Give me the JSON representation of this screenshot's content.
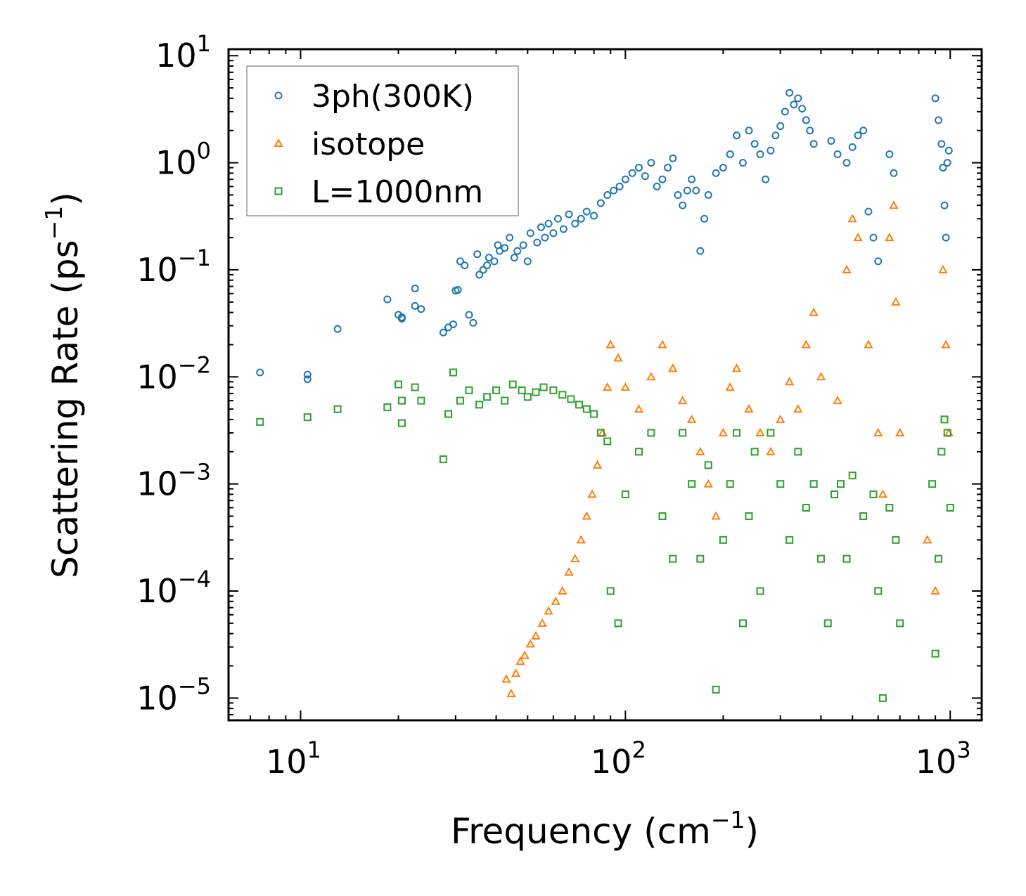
{
  "chart_data": {
    "type": "scatter",
    "x_scale": "log",
    "y_scale": "log",
    "xlabel": {
      "base": "Frequency (cm",
      "sup": "−1",
      "close": ")"
    },
    "ylabel": {
      "base": "Scattering Rate (ps",
      "sup": "−1",
      "close": ")"
    },
    "xlim": [
      6.0,
      1250
    ],
    "ylim": [
      6.2e-06,
      11.5
    ],
    "x_ticks": [
      {
        "value": 10,
        "base": "10",
        "exp": "1"
      },
      {
        "value": 100,
        "base": "10",
        "exp": "2"
      },
      {
        "value": 1000,
        "base": "10",
        "exp": "3"
      }
    ],
    "y_ticks": [
      {
        "value": 10,
        "base": "10",
        "exp": "1"
      },
      {
        "value": 1,
        "base": "10",
        "exp": "0"
      },
      {
        "value": 0.1,
        "base": "10",
        "exp": "−1"
      },
      {
        "value": 0.01,
        "base": "10",
        "exp": "−2"
      },
      {
        "value": 0.001,
        "base": "10",
        "exp": "−3"
      },
      {
        "value": 0.0001,
        "base": "10",
        "exp": "−4"
      },
      {
        "value": 1e-05,
        "base": "10",
        "exp": "−5"
      }
    ],
    "legend_position": "top-left",
    "series": [
      {
        "name": "3ph(300K)",
        "marker": "circle",
        "color": "#1f77b4",
        "points": [
          [
            7.5,
            0.011
          ],
          [
            10.5,
            0.0095
          ],
          [
            10.5,
            0.0105
          ],
          [
            13,
            0.028
          ],
          [
            18.5,
            0.053
          ],
          [
            20,
            0.038
          ],
          [
            20.5,
            0.036
          ],
          [
            20.5,
            0.035
          ],
          [
            22.5,
            0.067
          ],
          [
            22.5,
            0.046
          ],
          [
            23.5,
            0.043
          ],
          [
            27.5,
            0.026
          ],
          [
            28.5,
            0.029
          ],
          [
            29.5,
            0.031
          ],
          [
            30,
            0.064
          ],
          [
            30.5,
            0.065
          ],
          [
            31,
            0.12
          ],
          [
            32,
            0.11
          ],
          [
            33,
            0.038
          ],
          [
            34,
            0.032
          ],
          [
            35,
            0.14
          ],
          [
            35.5,
            0.09
          ],
          [
            36.5,
            0.1
          ],
          [
            37.5,
            0.11
          ],
          [
            38,
            0.13
          ],
          [
            39.5,
            0.12
          ],
          [
            40.5,
            0.17
          ],
          [
            41,
            0.15
          ],
          [
            42.5,
            0.16
          ],
          [
            44,
            0.2
          ],
          [
            45.5,
            0.13
          ],
          [
            46.5,
            0.15
          ],
          [
            48.5,
            0.17
          ],
          [
            50,
            0.12
          ],
          [
            51,
            0.22
          ],
          [
            53.5,
            0.18
          ],
          [
            55,
            0.25
          ],
          [
            56.5,
            0.2
          ],
          [
            58,
            0.27
          ],
          [
            60,
            0.22
          ],
          [
            62,
            0.3
          ],
          [
            64.5,
            0.24
          ],
          [
            67,
            0.33
          ],
          [
            70,
            0.27
          ],
          [
            73,
            0.3
          ],
          [
            76,
            0.35
          ],
          [
            80,
            0.32
          ],
          [
            84,
            0.42
          ],
          [
            88,
            0.5
          ],
          [
            92,
            0.55
          ],
          [
            96,
            0.6
          ],
          [
            100,
            0.7
          ],
          [
            105,
            0.8
          ],
          [
            110,
            0.9
          ],
          [
            115,
            0.75
          ],
          [
            120,
            1.0
          ],
          [
            125,
            0.6
          ],
          [
            130,
            0.7
          ],
          [
            135,
            0.9
          ],
          [
            140,
            1.1
          ],
          [
            145,
            0.5
          ],
          [
            150,
            0.4
          ],
          [
            155,
            0.55
          ],
          [
            160,
            0.7
          ],
          [
            165,
            0.55
          ],
          [
            170,
            0.15
          ],
          [
            175,
            0.3
          ],
          [
            180,
            0.5
          ],
          [
            190,
            0.8
          ],
          [
            200,
            0.9
          ],
          [
            210,
            1.2
          ],
          [
            220,
            1.8
          ],
          [
            230,
            1.0
          ],
          [
            240,
            2.0
          ],
          [
            250,
            1.5
          ],
          [
            260,
            1.2
          ],
          [
            270,
            0.7
          ],
          [
            280,
            1.3
          ],
          [
            290,
            1.8
          ],
          [
            300,
            2.2
          ],
          [
            310,
            3.0
          ],
          [
            320,
            4.5
          ],
          [
            330,
            3.5
          ],
          [
            340,
            4.0
          ],
          [
            350,
            3.2
          ],
          [
            360,
            2.5
          ],
          [
            370,
            2.0
          ],
          [
            380,
            1.5
          ],
          [
            430,
            1.6
          ],
          [
            450,
            1.2
          ],
          [
            480,
            1.0
          ],
          [
            500,
            1.4
          ],
          [
            520,
            1.8
          ],
          [
            540,
            2.0
          ],
          [
            560,
            0.35
          ],
          [
            580,
            0.2
          ],
          [
            600,
            0.12
          ],
          [
            650,
            1.2
          ],
          [
            670,
            0.8
          ],
          [
            900,
            4.0
          ],
          [
            920,
            2.5
          ],
          [
            940,
            1.5
          ],
          [
            950,
            0.9
          ],
          [
            960,
            0.4
          ],
          [
            970,
            0.2
          ],
          [
            980,
            1.0
          ],
          [
            990,
            1.3
          ]
        ]
      },
      {
        "name": "isotope",
        "marker": "triangle",
        "color": "#ff7f0e",
        "points": [
          [
            43,
            1.5e-05
          ],
          [
            44.5,
            1.1e-05
          ],
          [
            46,
            1.7e-05
          ],
          [
            47.5,
            2.2e-05
          ],
          [
            49,
            2.5e-05
          ],
          [
            51,
            3.2e-05
          ],
          [
            53,
            3.8e-05
          ],
          [
            55.5,
            5e-05
          ],
          [
            58,
            6.5e-05
          ],
          [
            61,
            8e-05
          ],
          [
            64,
            0.0001
          ],
          [
            67,
            0.00015
          ],
          [
            70,
            0.0002
          ],
          [
            73,
            0.0003
          ],
          [
            76,
            0.0005
          ],
          [
            79,
            0.0008
          ],
          [
            82,
            0.0015
          ],
          [
            85,
            0.003
          ],
          [
            88,
            0.008
          ],
          [
            90,
            0.02
          ],
          [
            95,
            0.015
          ],
          [
            100,
            0.008
          ],
          [
            110,
            0.005
          ],
          [
            120,
            0.01
          ],
          [
            130,
            0.02
          ],
          [
            140,
            0.012
          ],
          [
            150,
            0.006
          ],
          [
            160,
            0.004
          ],
          [
            170,
            0.002
          ],
          [
            180,
            0.001
          ],
          [
            190,
            0.0005
          ],
          [
            200,
            0.003
          ],
          [
            210,
            0.008
          ],
          [
            220,
            0.012
          ],
          [
            240,
            0.005
          ],
          [
            260,
            0.003
          ],
          [
            280,
            0.002
          ],
          [
            300,
            0.004
          ],
          [
            320,
            0.009
          ],
          [
            340,
            0.005
          ],
          [
            360,
            0.02
          ],
          [
            380,
            0.04
          ],
          [
            400,
            0.01
          ],
          [
            450,
            0.006
          ],
          [
            480,
            0.1
          ],
          [
            500,
            0.3
          ],
          [
            520,
            0.2
          ],
          [
            560,
            0.02
          ],
          [
            600,
            0.003
          ],
          [
            620,
            0.0008
          ],
          [
            650,
            0.2
          ],
          [
            670,
            0.4
          ],
          [
            680,
            0.05
          ],
          [
            700,
            0.003
          ],
          [
            850,
            0.0003
          ],
          [
            900,
            0.0001
          ],
          [
            950,
            0.1
          ],
          [
            970,
            0.02
          ],
          [
            990,
            0.003
          ]
        ]
      },
      {
        "name": "L=1000nm",
        "marker": "square",
        "color": "#2ca02c",
        "points": [
          [
            7.5,
            0.0038
          ],
          [
            10.5,
            0.0042
          ],
          [
            13,
            0.005
          ],
          [
            18.5,
            0.0052
          ],
          [
            20,
            0.0085
          ],
          [
            20.5,
            0.006
          ],
          [
            20.5,
            0.0037
          ],
          [
            22.5,
            0.008
          ],
          [
            23.5,
            0.006
          ],
          [
            27.5,
            0.0017
          ],
          [
            28.5,
            0.0045
          ],
          [
            29.5,
            0.011
          ],
          [
            31,
            0.006
          ],
          [
            33,
            0.0075
          ],
          [
            35.5,
            0.0055
          ],
          [
            37.5,
            0.0065
          ],
          [
            40,
            0.0075
          ],
          [
            42.5,
            0.006
          ],
          [
            45,
            0.0085
          ],
          [
            48,
            0.0075
          ],
          [
            50,
            0.0065
          ],
          [
            53,
            0.0072
          ],
          [
            56,
            0.008
          ],
          [
            60,
            0.0075
          ],
          [
            64,
            0.0068
          ],
          [
            68,
            0.0062
          ],
          [
            72,
            0.0055
          ],
          [
            76,
            0.005
          ],
          [
            80,
            0.0045
          ],
          [
            84,
            0.003
          ],
          [
            88,
            0.0025
          ],
          [
            90,
            0.0001
          ],
          [
            95,
            5e-05
          ],
          [
            100,
            0.0008
          ],
          [
            110,
            0.002
          ],
          [
            120,
            0.003
          ],
          [
            130,
            0.0005
          ],
          [
            140,
            0.0002
          ],
          [
            150,
            0.003
          ],
          [
            160,
            0.001
          ],
          [
            170,
            0.0002
          ],
          [
            180,
            0.0015
          ],
          [
            190,
            1.2e-05
          ],
          [
            200,
            0.0003
          ],
          [
            210,
            0.001
          ],
          [
            220,
            0.003
          ],
          [
            230,
            5e-05
          ],
          [
            240,
            0.0005
          ],
          [
            250,
            0.002
          ],
          [
            260,
            0.0001
          ],
          [
            280,
            0.003
          ],
          [
            300,
            0.001
          ],
          [
            320,
            0.0003
          ],
          [
            340,
            0.002
          ],
          [
            360,
            0.0006
          ],
          [
            380,
            0.001
          ],
          [
            400,
            0.0002
          ],
          [
            420,
            5e-05
          ],
          [
            440,
            0.0008
          ],
          [
            460,
            0.001
          ],
          [
            480,
            0.0002
          ],
          [
            500,
            0.0012
          ],
          [
            540,
            0.0005
          ],
          [
            580,
            0.0008
          ],
          [
            600,
            0.0001
          ],
          [
            620,
            1e-05
          ],
          [
            650,
            0.0006
          ],
          [
            680,
            0.0003
          ],
          [
            700,
            5e-05
          ],
          [
            880,
            0.001
          ],
          [
            900,
            2.6e-05
          ],
          [
            920,
            0.0002
          ],
          [
            940,
            0.002
          ],
          [
            960,
            0.004
          ],
          [
            980,
            0.003
          ],
          [
            1000,
            0.0006
          ]
        ]
      }
    ]
  }
}
